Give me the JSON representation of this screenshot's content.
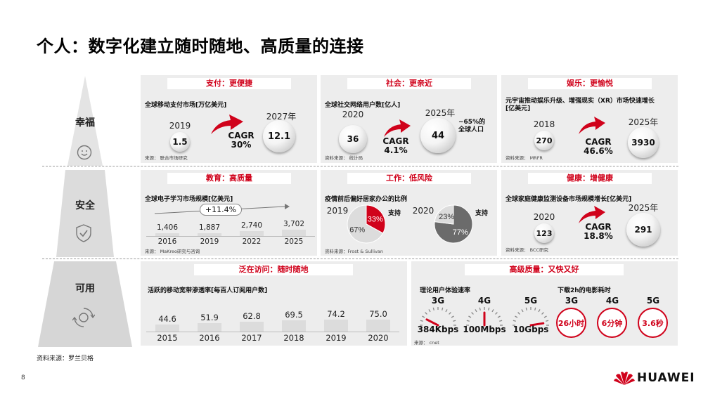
{
  "title": "个人：数字化建立随时随地、高质量的连接",
  "page_number": "8",
  "footer_source": "资料来源：罗兰贝格",
  "brand": {
    "name": "HUAWEI",
    "color": "#d0021b"
  },
  "levels": [
    {
      "label": "幸福",
      "icon": "smile-icon"
    },
    {
      "label": "安全",
      "icon": "shield-check-icon"
    },
    {
      "label": "可用",
      "icon": "cycle-icon"
    }
  ],
  "payment": {
    "header": "支付：更便捷",
    "subtitle": "全球移动支付市场[万亿美元]",
    "year_from": "2019",
    "value_from": "1.5",
    "year_to": "2027年",
    "value_to": "12.1",
    "cagr_label": "CAGR",
    "cagr_value": "30%",
    "source": "来源：  联合市场研究"
  },
  "social": {
    "header": "社会：更亲近",
    "subtitle": "全球社交网络用户数[亿人]",
    "year_from": "2020",
    "value_from": "36",
    "year_to": "2025年",
    "value_to": "44",
    "cagr_label": "CAGR",
    "cagr_value": "4.1%",
    "note": "~65%的\n全球人口",
    "source": "资料来源：  统计局"
  },
  "entertainment": {
    "header": "娱乐：更愉悦",
    "subtitle": "元宇宙推动娱乐升级、增强现实（XR）市场快速增长\n[亿美元]",
    "year_from": "2018",
    "value_from": "270",
    "year_to": "2025年",
    "value_to": "3930",
    "cagr_label": "CAGR",
    "cagr_value": "46.6%",
    "source": "资料来源：  MRFR"
  },
  "education": {
    "header": "教育：高质量",
    "subtitle": "全球电子学习市场规模[亿美元]",
    "growth": "+11.4%",
    "source": "来源：  MaKreo研究与咨询"
  },
  "work": {
    "header": "工作：低风险",
    "subtitle": "疫情前后偏好居家办公的比例",
    "support_label": "支持",
    "source": "资料来源：Frost & Sullivan"
  },
  "health": {
    "header": "健康：增健康",
    "subtitle": "全球家庭健康监测设备市场规模增长[亿美元]",
    "year_from": "2020",
    "value_from": "123",
    "year_to": "2025年",
    "value_to": "291",
    "cagr_label": "CAGR",
    "cagr_value": "18.8%",
    "source": "资料来源：  BCC研究"
  },
  "access": {
    "header": "泛在访问：随时随地",
    "subtitle": "活跃的移动宽带渗透率[每百人订阅用户数]"
  },
  "quality": {
    "header": "高级质量：又快又好",
    "speed_title": "理论用户体验速率",
    "movie_title": "下载2h的电影耗时",
    "source": "来源：  cnet",
    "speeds": [
      {
        "gen": "3G",
        "value": "384Kbps",
        "level": 0.15
      },
      {
        "gen": "4G",
        "value": "100Mbps",
        "level": 0.5
      },
      {
        "gen": "5G",
        "value": "10Gbps",
        "level": 0.95
      }
    ],
    "movies": [
      {
        "gen": "3G",
        "value": "26小时"
      },
      {
        "gen": "4G",
        "value": "6分钟"
      },
      {
        "gen": "5G",
        "value": "3.6秒"
      }
    ]
  },
  "chart_data": [
    {
      "type": "bar",
      "categories": [
        "2016",
        "2019",
        "2022",
        "2025"
      ],
      "values": [
        1406,
        1887,
        2740,
        3702
      ],
      "value_labels": [
        "1,406",
        "1,887",
        "2,740",
        "3,702"
      ],
      "title": "全球电子学习市场规模[亿美元]"
    },
    {
      "type": "bar",
      "categories": [
        "2015",
        "2016",
        "2017",
        "2018",
        "2019",
        "2020"
      ],
      "values": [
        44.6,
        51.9,
        62.8,
        69.5,
        74.2,
        75.0
      ],
      "value_labels": [
        "44.6",
        "51.9",
        "62.8",
        "69.5",
        "74.2",
        "75.0"
      ],
      "title": "活跃的移动宽带渗透率[每百人订阅用户数]"
    },
    {
      "type": "pie",
      "title": "2019",
      "labels": [
        "支持",
        ""
      ],
      "values": [
        33,
        67
      ],
      "value_labels": [
        "33%",
        "67%"
      ],
      "colors": [
        "#d0021b",
        "#dcdcdc"
      ]
    },
    {
      "type": "pie",
      "title": "2020",
      "labels": [
        "支持",
        ""
      ],
      "values": [
        77,
        23
      ],
      "value_labels": [
        "77%",
        "23%"
      ],
      "colors": [
        "#6b6b6b",
        "#dcdcdc"
      ]
    }
  ]
}
